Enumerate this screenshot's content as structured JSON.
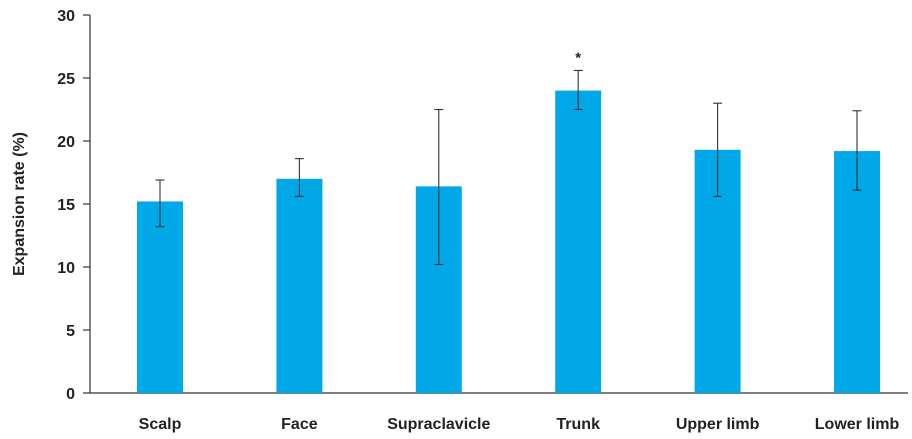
{
  "chart_data": {
    "type": "bar",
    "title": "",
    "xlabel": "",
    "ylabel": "Expansion rate (%)",
    "ylim": [
      0,
      30
    ],
    "yticks": [
      0,
      5,
      10,
      15,
      20,
      25,
      30
    ],
    "grid": false,
    "bar_color": "#00a8e8",
    "categories": [
      "Scalp",
      "Face",
      "Supraclavicle",
      "Trunk",
      "Upper limb",
      "Lower limb"
    ],
    "values": [
      15.2,
      17.0,
      16.4,
      24.0,
      19.3,
      19.2
    ],
    "error_low": [
      13.2,
      15.6,
      10.2,
      22.5,
      15.6,
      16.1
    ],
    "error_high": [
      16.9,
      18.6,
      22.5,
      25.6,
      23.0,
      22.4
    ],
    "annotations": [
      {
        "category": "Trunk",
        "text": "*"
      }
    ]
  }
}
